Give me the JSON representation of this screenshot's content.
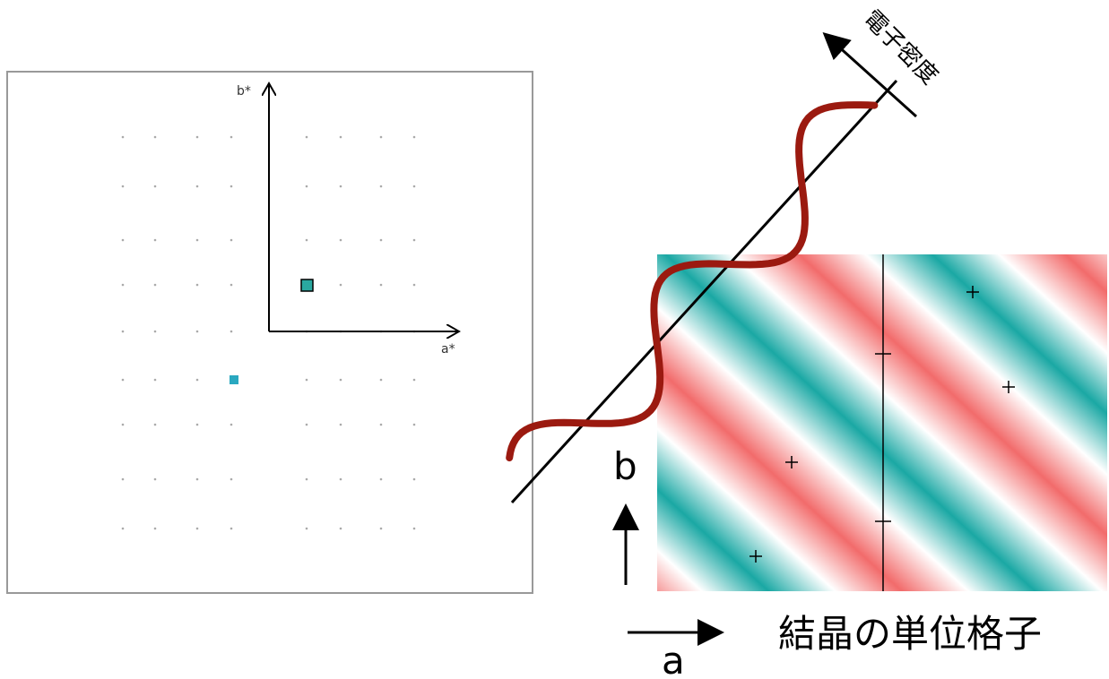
{
  "left_panel": {
    "b_axis_label": "b*",
    "a_axis_label": "a*"
  },
  "right_panel": {
    "wave_label": "電子密度",
    "b_label": "b",
    "a_label": "a",
    "caption": "結晶の単位格子"
  }
}
